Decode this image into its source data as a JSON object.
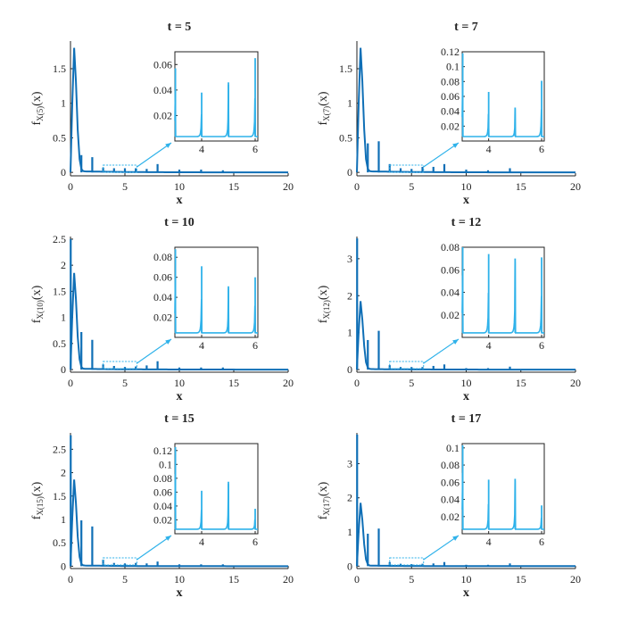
{
  "colors": {
    "main": "#0f6fb6",
    "inset": "#2fb2ea",
    "axis": "#222222"
  },
  "chart_data": [
    {
      "type": "line",
      "title": "t = 5",
      "xlabel": "x",
      "ylabel": "f_X(5)(x)",
      "ylabel_main": "f",
      "ylabel_sub": "X(5)",
      "ylabel_tail": "(x)",
      "xlim": [
        0,
        20
      ],
      "ylim": [
        -0.05,
        1.9
      ],
      "xticks": [
        0,
        5,
        10,
        15,
        20
      ],
      "yticks": [
        0,
        0.5,
        1,
        1.5
      ],
      "ytick_labels": [
        "0",
        "0.5",
        "1",
        "1.5"
      ],
      "peak": {
        "x": 0.3,
        "y": 1.8
      },
      "spikes": [
        {
          "x": 1,
          "y": 0.25
        },
        {
          "x": 2,
          "y": 0.22
        },
        {
          "x": 3,
          "y": 0.07
        },
        {
          "x": 4,
          "y": 0.06
        },
        {
          "x": 5,
          "y": 0.06
        },
        {
          "x": 6,
          "y": 0.06
        },
        {
          "x": 7,
          "y": 0.05
        },
        {
          "x": 8,
          "y": 0.12
        },
        {
          "x": 10,
          "y": 0.04
        },
        {
          "x": 12,
          "y": 0.04
        },
        {
          "x": 14,
          "y": 0.03
        }
      ],
      "inset": {
        "xlim": [
          3,
          6.1
        ],
        "ylim": [
          0,
          0.07
        ],
        "xticks": [
          4,
          6
        ],
        "yticks": [
          0.02,
          0.04,
          0.06
        ],
        "ytick_labels": [
          "0.02",
          "0.04",
          "0.06"
        ],
        "spikes": [
          {
            "x": 3.02,
            "y": 0.057
          },
          {
            "x": 4,
            "y": 0.038
          },
          {
            "x": 5,
            "y": 0.046
          },
          {
            "x": 6,
            "y": 0.065
          }
        ]
      }
    },
    {
      "type": "line",
      "title": "t = 7",
      "xlabel": "x",
      "ylabel": "f_X(7)(x)",
      "ylabel_main": "f",
      "ylabel_sub": "X(7)",
      "ylabel_tail": "(x)",
      "xlim": [
        0,
        20
      ],
      "ylim": [
        -0.05,
        1.9
      ],
      "xticks": [
        0,
        5,
        10,
        15,
        20
      ],
      "yticks": [
        0,
        0.5,
        1,
        1.5
      ],
      "ytick_labels": [
        "0",
        "0.5",
        "1",
        "1.5"
      ],
      "peak": {
        "x": 0.3,
        "y": 1.8
      },
      "spikes": [
        {
          "x": 1,
          "y": 0.42
        },
        {
          "x": 2,
          "y": 0.45
        },
        {
          "x": 3,
          "y": 0.12
        },
        {
          "x": 4,
          "y": 0.06
        },
        {
          "x": 5,
          "y": 0.05
        },
        {
          "x": 6,
          "y": 0.08
        },
        {
          "x": 7,
          "y": 0.08
        },
        {
          "x": 8,
          "y": 0.12
        },
        {
          "x": 10,
          "y": 0.04
        },
        {
          "x": 12,
          "y": 0.03
        },
        {
          "x": 14,
          "y": 0.06
        }
      ],
      "inset": {
        "xlim": [
          3,
          6.1
        ],
        "ylim": [
          0,
          0.12
        ],
        "xticks": [
          4,
          6
        ],
        "yticks": [
          0.02,
          0.04,
          0.06,
          0.08,
          0.1,
          0.12
        ],
        "ytick_labels": [
          "0.02",
          "0.04",
          "0.06",
          "0.08",
          "0.1",
          "0.12"
        ],
        "spikes": [
          {
            "x": 3.02,
            "y": 0.118
          },
          {
            "x": 4,
            "y": 0.066
          },
          {
            "x": 5,
            "y": 0.045
          },
          {
            "x": 6,
            "y": 0.081
          }
        ]
      }
    },
    {
      "type": "line",
      "title": "t = 10",
      "xlabel": "x",
      "ylabel": "f_X(10)(x)",
      "ylabel_main": "f",
      "ylabel_sub": "X(10)",
      "ylabel_tail": "(x)",
      "xlim": [
        0,
        20
      ],
      "ylim": [
        -0.05,
        2.55
      ],
      "xticks": [
        0,
        5,
        10,
        15,
        20
      ],
      "yticks": [
        0,
        0.5,
        1,
        1.5,
        2,
        2.5
      ],
      "ytick_labels": [
        "0",
        "0.5",
        "1",
        "1.5",
        "2",
        "2.5"
      ],
      "peak": {
        "x": 0.3,
        "y": 1.85
      },
      "spikes": [
        {
          "x": 0.02,
          "y": 2.5
        },
        {
          "x": 1,
          "y": 0.72
        },
        {
          "x": 2,
          "y": 0.57
        },
        {
          "x": 3,
          "y": 0.1
        },
        {
          "x": 4,
          "y": 0.07
        },
        {
          "x": 5,
          "y": 0.05
        },
        {
          "x": 6,
          "y": 0.06
        },
        {
          "x": 7,
          "y": 0.08
        },
        {
          "x": 8,
          "y": 0.16
        },
        {
          "x": 10,
          "y": 0.04
        },
        {
          "x": 12,
          "y": 0.04
        },
        {
          "x": 14,
          "y": 0.04
        }
      ],
      "inset": {
        "xlim": [
          3,
          6.1
        ],
        "ylim": [
          0,
          0.09
        ],
        "xticks": [
          4,
          6
        ],
        "yticks": [
          0.02,
          0.04,
          0.06,
          0.08
        ],
        "ytick_labels": [
          "0.02",
          "0.04",
          "0.06",
          "0.08"
        ],
        "spikes": [
          {
            "x": 3.02,
            "y": 0.088
          },
          {
            "x": 4,
            "y": 0.071
          },
          {
            "x": 5,
            "y": 0.051
          },
          {
            "x": 6,
            "y": 0.06
          }
        ]
      }
    },
    {
      "type": "line",
      "title": "t = 12",
      "xlabel": "x",
      "ylabel": "f_X(12)(x)",
      "ylabel_main": "f",
      "ylabel_sub": "X(12)",
      "ylabel_tail": "(x)",
      "xlim": [
        0,
        20
      ],
      "ylim": [
        -0.07,
        3.6
      ],
      "xticks": [
        0,
        5,
        10,
        15,
        20
      ],
      "yticks": [
        0,
        1,
        2,
        3
      ],
      "ytick_labels": [
        "0",
        "1",
        "2",
        "3"
      ],
      "peak": {
        "x": 0.3,
        "y": 1.85
      },
      "spikes": [
        {
          "x": 0.02,
          "y": 3.55
        },
        {
          "x": 1,
          "y": 0.8
        },
        {
          "x": 2,
          "y": 1.05
        },
        {
          "x": 3,
          "y": 0.12
        },
        {
          "x": 4,
          "y": 0.07
        },
        {
          "x": 5,
          "y": 0.07
        },
        {
          "x": 6,
          "y": 0.07
        },
        {
          "x": 7,
          "y": 0.1
        },
        {
          "x": 8,
          "y": 0.14
        },
        {
          "x": 10,
          "y": 0.04
        },
        {
          "x": 12,
          "y": 0.04
        },
        {
          "x": 14,
          "y": 0.08
        }
      ],
      "inset": {
        "xlim": [
          3,
          6.1
        ],
        "ylim": [
          0,
          0.08
        ],
        "xticks": [
          4,
          6
        ],
        "yticks": [
          0.02,
          0.04,
          0.06,
          0.08
        ],
        "ytick_labels": [
          "0.02",
          "0.04",
          "0.06",
          "0.08"
        ],
        "spikes": [
          {
            "x": 3.02,
            "y": 0.08
          },
          {
            "x": 4,
            "y": 0.074
          },
          {
            "x": 5,
            "y": 0.07
          },
          {
            "x": 6,
            "y": 0.071
          }
        ]
      }
    },
    {
      "type": "line",
      "title": "t = 15",
      "xlabel": "x",
      "ylabel": "f_X(15)(x)",
      "ylabel_main": "f",
      "ylabel_sub": "X(15)",
      "ylabel_tail": "(x)",
      "xlim": [
        0,
        20
      ],
      "ylim": [
        -0.05,
        2.85
      ],
      "xticks": [
        0,
        5,
        10,
        15,
        20
      ],
      "yticks": [
        0,
        0.5,
        1,
        1.5,
        2,
        2.5
      ],
      "ytick_labels": [
        "0",
        "0.5",
        "1",
        "1.5",
        "2",
        "2.5"
      ],
      "peak": {
        "x": 0.3,
        "y": 1.85
      },
      "spikes": [
        {
          "x": 0.02,
          "y": 2.8
        },
        {
          "x": 1,
          "y": 0.98
        },
        {
          "x": 2,
          "y": 0.85
        },
        {
          "x": 3,
          "y": 0.14
        },
        {
          "x": 4,
          "y": 0.07
        },
        {
          "x": 5,
          "y": 0.06
        },
        {
          "x": 6,
          "y": 0.07
        },
        {
          "x": 7,
          "y": 0.06
        },
        {
          "x": 8,
          "y": 0.1
        },
        {
          "x": 10,
          "y": 0.04
        },
        {
          "x": 12,
          "y": 0.04
        },
        {
          "x": 14,
          "y": 0.04
        }
      ],
      "inset": {
        "xlim": [
          3,
          6.1
        ],
        "ylim": [
          0,
          0.13
        ],
        "xticks": [
          4,
          6
        ],
        "yticks": [
          0.02,
          0.04,
          0.06,
          0.08,
          0.1,
          0.12
        ],
        "ytick_labels": [
          "0.02",
          "0.04",
          "0.06",
          "0.08",
          "0.1",
          "0.12"
        ],
        "spikes": [
          {
            "x": 3.02,
            "y": 0.125
          },
          {
            "x": 4,
            "y": 0.062
          },
          {
            "x": 5,
            "y": 0.075
          },
          {
            "x": 6,
            "y": 0.036
          }
        ]
      }
    },
    {
      "type": "line",
      "title": "t = 17",
      "xlabel": "x",
      "ylabel": "f_X(17)(x)",
      "ylabel_main": "f",
      "ylabel_sub": "X(17)",
      "ylabel_tail": "(x)",
      "xlim": [
        0,
        20
      ],
      "ylim": [
        -0.07,
        3.9
      ],
      "xticks": [
        0,
        5,
        10,
        15,
        20
      ],
      "yticks": [
        0,
        1,
        2,
        3
      ],
      "ytick_labels": [
        "0",
        "1",
        "2",
        "3"
      ],
      "peak": {
        "x": 0.3,
        "y": 1.85
      },
      "spikes": [
        {
          "x": 0.02,
          "y": 3.85
        },
        {
          "x": 1,
          "y": 0.95
        },
        {
          "x": 2,
          "y": 1.1
        },
        {
          "x": 3,
          "y": 0.12
        },
        {
          "x": 4,
          "y": 0.07
        },
        {
          "x": 5,
          "y": 0.06
        },
        {
          "x": 6,
          "y": 0.07
        },
        {
          "x": 7,
          "y": 0.08
        },
        {
          "x": 8,
          "y": 0.12
        },
        {
          "x": 10,
          "y": 0.04
        },
        {
          "x": 12,
          "y": 0.04
        },
        {
          "x": 14,
          "y": 0.08
        }
      ],
      "inset": {
        "xlim": [
          3,
          6.1
        ],
        "ylim": [
          0,
          0.105
        ],
        "xticks": [
          4,
          6
        ],
        "yticks": [
          0.02,
          0.04,
          0.06,
          0.08,
          0.1
        ],
        "ytick_labels": [
          "0.02",
          "0.04",
          "0.06",
          "0.08",
          "0.1"
        ],
        "spikes": [
          {
            "x": 3.02,
            "y": 0.103
          },
          {
            "x": 4,
            "y": 0.063
          },
          {
            "x": 5,
            "y": 0.064
          },
          {
            "x": 6,
            "y": 0.033
          }
        ]
      }
    }
  ]
}
